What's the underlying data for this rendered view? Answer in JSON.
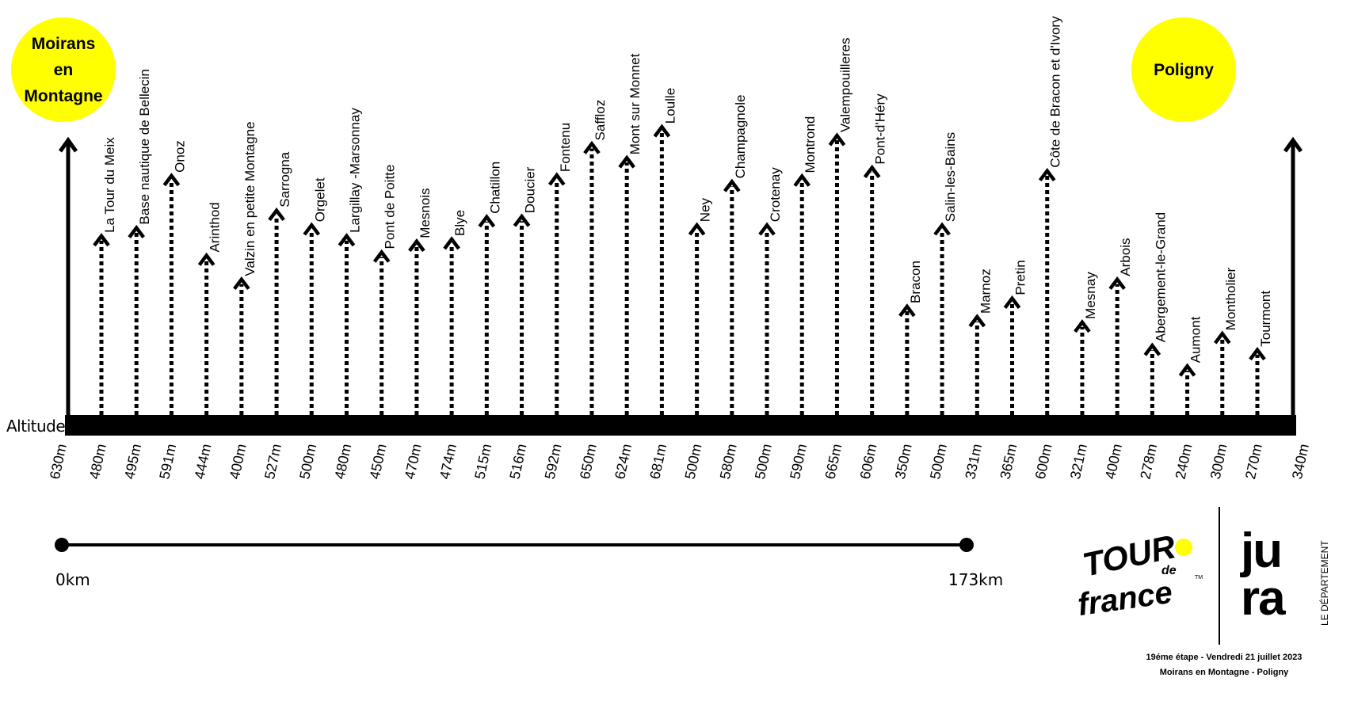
{
  "start": {
    "lines": [
      "Moirans",
      "en",
      "Montagne"
    ],
    "altitude": "630m"
  },
  "finish": {
    "lines": [
      "Poligny"
    ],
    "altitude": "340m"
  },
  "profile": {
    "altitude_label": "Altitude",
    "accent_color": "#ffff00",
    "line_color": "#000000"
  },
  "points": [
    {
      "name": "La Tour du Meix",
      "alt": "480m",
      "elev": 480
    },
    {
      "name": "Base nautique de Bellecin",
      "alt": "495m",
      "elev": 495
    },
    {
      "name": "Onoz",
      "alt": "591m",
      "elev": 591
    },
    {
      "name": "Arinthod",
      "alt": "444m",
      "elev": 444
    },
    {
      "name": "Valzin en petite Montagne",
      "alt": "400m",
      "elev": 400
    },
    {
      "name": "Sarrogna",
      "alt": "527m",
      "elev": 527
    },
    {
      "name": "Orgelet",
      "alt": "500m",
      "elev": 500
    },
    {
      "name": "Largillay -Marsonnay",
      "alt": "480m",
      "elev": 480
    },
    {
      "name": "Pont de Poitte",
      "alt": "450m",
      "elev": 450
    },
    {
      "name": "Mesnois",
      "alt": "470m",
      "elev": 470
    },
    {
      "name": "Blye",
      "alt": "474m",
      "elev": 474
    },
    {
      "name": "Chatillon",
      "alt": "515m",
      "elev": 515
    },
    {
      "name": "Doucier",
      "alt": "516m",
      "elev": 516
    },
    {
      "name": "Fontenu",
      "alt": "592m",
      "elev": 592
    },
    {
      "name": "Saffloz",
      "alt": "650m",
      "elev": 650
    },
    {
      "name": "Mont sur Monnet",
      "alt": "624m",
      "elev": 624
    },
    {
      "name": "Loulle",
      "alt": "681m",
      "elev": 681
    },
    {
      "name": "Ney",
      "alt": "500m",
      "elev": 500
    },
    {
      "name": "Champagnole",
      "alt": "580m",
      "elev": 580
    },
    {
      "name": "Crotenay",
      "alt": "500m",
      "elev": 500
    },
    {
      "name": "Montrond",
      "alt": "590m",
      "elev": 590
    },
    {
      "name": "Valempouilleres",
      "alt": "665m",
      "elev": 665
    },
    {
      "name": "Pont-d'Héry",
      "alt": "606m",
      "elev": 606
    },
    {
      "name": "Bracon",
      "alt": "350m",
      "elev": 350
    },
    {
      "name": "Salin-les-Bains",
      "alt": "500m",
      "elev": 500
    },
    {
      "name": "Marnoz",
      "alt": "331m",
      "elev": 331
    },
    {
      "name": "Pretin",
      "alt": "365m",
      "elev": 365
    },
    {
      "name": "Côte de Bracon et d'Ivory",
      "alt": "600m",
      "elev": 600
    },
    {
      "name": "Mesnay",
      "alt": "321m",
      "elev": 321
    },
    {
      "name": "Arbois",
      "alt": "400m",
      "elev": 400
    },
    {
      "name": "Abergement-le-Grand",
      "alt": "278m",
      "elev": 278
    },
    {
      "name": "Aumont",
      "alt": "240m",
      "elev": 240
    },
    {
      "name": "Montholier",
      "alt": "300m",
      "elev": 300
    },
    {
      "name": "Tourmont",
      "alt": "270m",
      "elev": 270
    }
  ],
  "distance": {
    "start": "0km",
    "end": "173km"
  },
  "logos": {
    "tour_line1": "TOUR",
    "tour_de": "de",
    "tour_line2": "france",
    "tour_tm": "TM",
    "jura_line1": "ju",
    "jura_line2": "ra",
    "jura_side": "LE DÉPARTEMENT"
  },
  "footer": {
    "line1": "19éme étape - Vendredi 21 juillet 2023",
    "line2": "Moirans en Montagne - Poligny"
  }
}
